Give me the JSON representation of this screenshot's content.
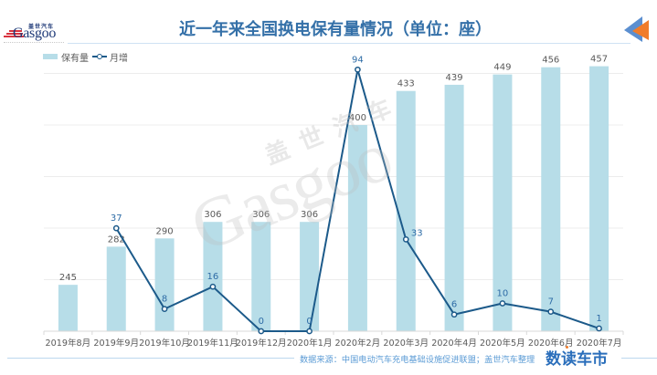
{
  "header": {
    "title": "近一年来全国换电保有量情况（单位：座）"
  },
  "logo": {
    "cn": "盖世汽车",
    "en": "Gasgoo"
  },
  "legend": [
    {
      "label": "保有量",
      "type": "bar"
    },
    {
      "label": "月增",
      "type": "line"
    }
  ],
  "watermark": {
    "cn": "盖世汽车",
    "en": "Gasgoo"
  },
  "footer": {
    "source": "数据来源：中国电动汽车充电基础设施促进联盟；盖世汽车整理",
    "brand": "数读车市"
  },
  "icons": {
    "nav": "double-left-arrow-icon"
  },
  "colors": {
    "title": "#3470a8",
    "bar": "#b7dde8",
    "line": "#1c5a8a",
    "line_label": "#2e6ca6",
    "bar_label": "#595959",
    "gridline": "#ececec",
    "axis": "#d9d9d9",
    "arrow_blue": "#5b8fd0",
    "arrow_orange": "#f07c2a"
  },
  "chart_data": {
    "type": "bar",
    "title": "近一年来全国换电保有量情况（单位：座）",
    "xlabel": "",
    "ylabel": "",
    "categories": [
      "2019年8月",
      "2019年9月",
      "2019年10月",
      "2019年11月",
      "2019年12月",
      "2020年1月",
      "2020年2月",
      "2020年3月",
      "2020年4月",
      "2020年5月",
      "2020年6月",
      "2020年7月"
    ],
    "series": [
      {
        "name": "保有量",
        "type": "bar",
        "axis": "primary",
        "values": [
          245,
          282,
          290,
          306,
          306,
          306,
          400,
          433,
          439,
          449,
          456,
          457
        ]
      },
      {
        "name": "月增",
        "type": "line",
        "axis": "secondary",
        "values": [
          null,
          37,
          8,
          16,
          0,
          0,
          94,
          33,
          6,
          10,
          7,
          1
        ]
      }
    ],
    "ylim": [
      200,
      460
    ],
    "y2lim": [
      0,
      100
    ],
    "gridlines": [
      250,
      300,
      350,
      400,
      450
    ],
    "grid": true,
    "legend_position": "top-left",
    "data_labels": true,
    "source": "数据来源：中国电动汽车充电基础设施促进联盟；盖世汽车整理"
  }
}
